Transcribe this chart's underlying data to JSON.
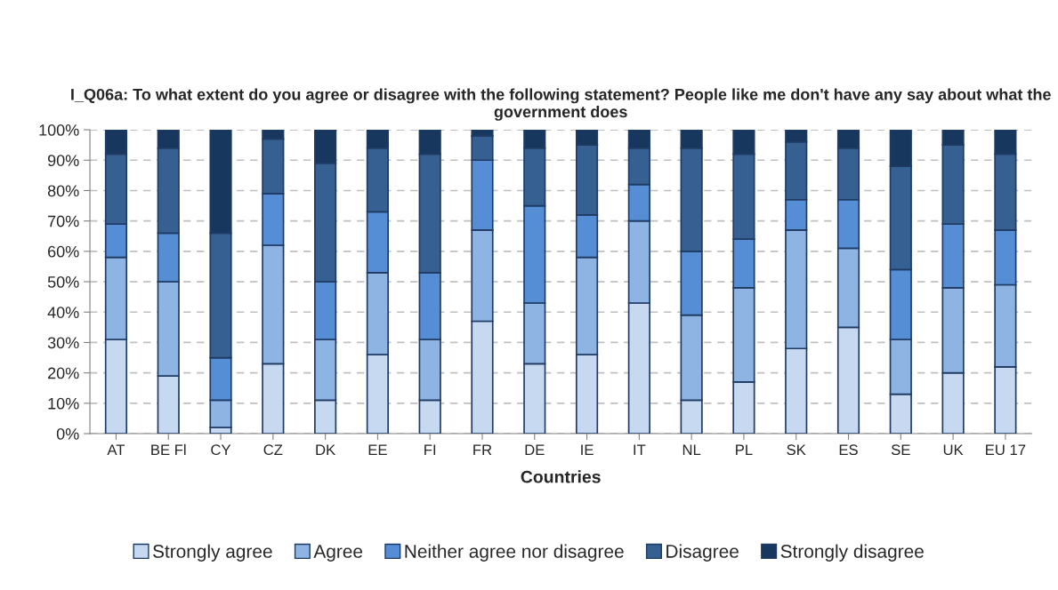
{
  "chart_data": {
    "type": "bar",
    "stacked": true,
    "title": "I_Q06a: To what extent do you agree or disagree with the following statement? People like me don't have any say about what the government does",
    "xlabel": "Countries",
    "categories": [
      "AT",
      "BE Fl",
      "CY",
      "CZ",
      "DK",
      "EE",
      "FI",
      "FR",
      "DE",
      "IE",
      "IT",
      "NL",
      "PL",
      "SK",
      "ES",
      "SE",
      "UK",
      "EU 17"
    ],
    "series": [
      {
        "name": "Strongly agree",
        "color": "#c6d9f1",
        "values": [
          31,
          19,
          2,
          23,
          11,
          26,
          11,
          37,
          23,
          26,
          43,
          11,
          17,
          28,
          35,
          13,
          20,
          22
        ]
      },
      {
        "name": "Agree",
        "color": "#8eb4e3",
        "values": [
          27,
          31,
          9,
          39,
          20,
          27,
          20,
          30,
          20,
          32,
          27,
          28,
          31,
          39,
          26,
          18,
          28,
          27
        ]
      },
      {
        "name": "Neither agree nor disagree",
        "color": "#558ed5",
        "values": [
          11,
          16,
          14,
          17,
          19,
          20,
          22,
          23,
          32,
          14,
          12,
          21,
          16,
          10,
          16,
          23,
          21,
          18
        ]
      },
      {
        "name": "Disagree",
        "color": "#376092",
        "values": [
          23,
          28,
          41,
          18,
          39,
          21,
          39,
          8,
          19,
          23,
          12,
          34,
          28,
          19,
          17,
          34,
          26,
          25
        ]
      },
      {
        "name": "Strongly disagree",
        "color": "#17375e",
        "values": [
          8,
          6,
          34,
          3,
          11,
          6,
          8,
          2,
          6,
          5,
          6,
          6,
          8,
          4,
          6,
          12,
          5,
          8
        ]
      }
    ],
    "ylim": [
      0,
      100
    ],
    "yticks": [
      {
        "value": 0,
        "label": "0%"
      },
      {
        "value": 10,
        "label": "10%"
      },
      {
        "value": 20,
        "label": "20%"
      },
      {
        "value": 30,
        "label": "30%"
      },
      {
        "value": 40,
        "label": "40%"
      },
      {
        "value": 50,
        "label": "50%"
      },
      {
        "value": 60,
        "label": "60%"
      },
      {
        "value": 70,
        "label": "70%"
      },
      {
        "value": 80,
        "label": "80%"
      },
      {
        "value": 90,
        "label": "90%"
      },
      {
        "value": 100,
        "label": "100%"
      }
    ],
    "grid": "y",
    "legend": "bottom"
  }
}
